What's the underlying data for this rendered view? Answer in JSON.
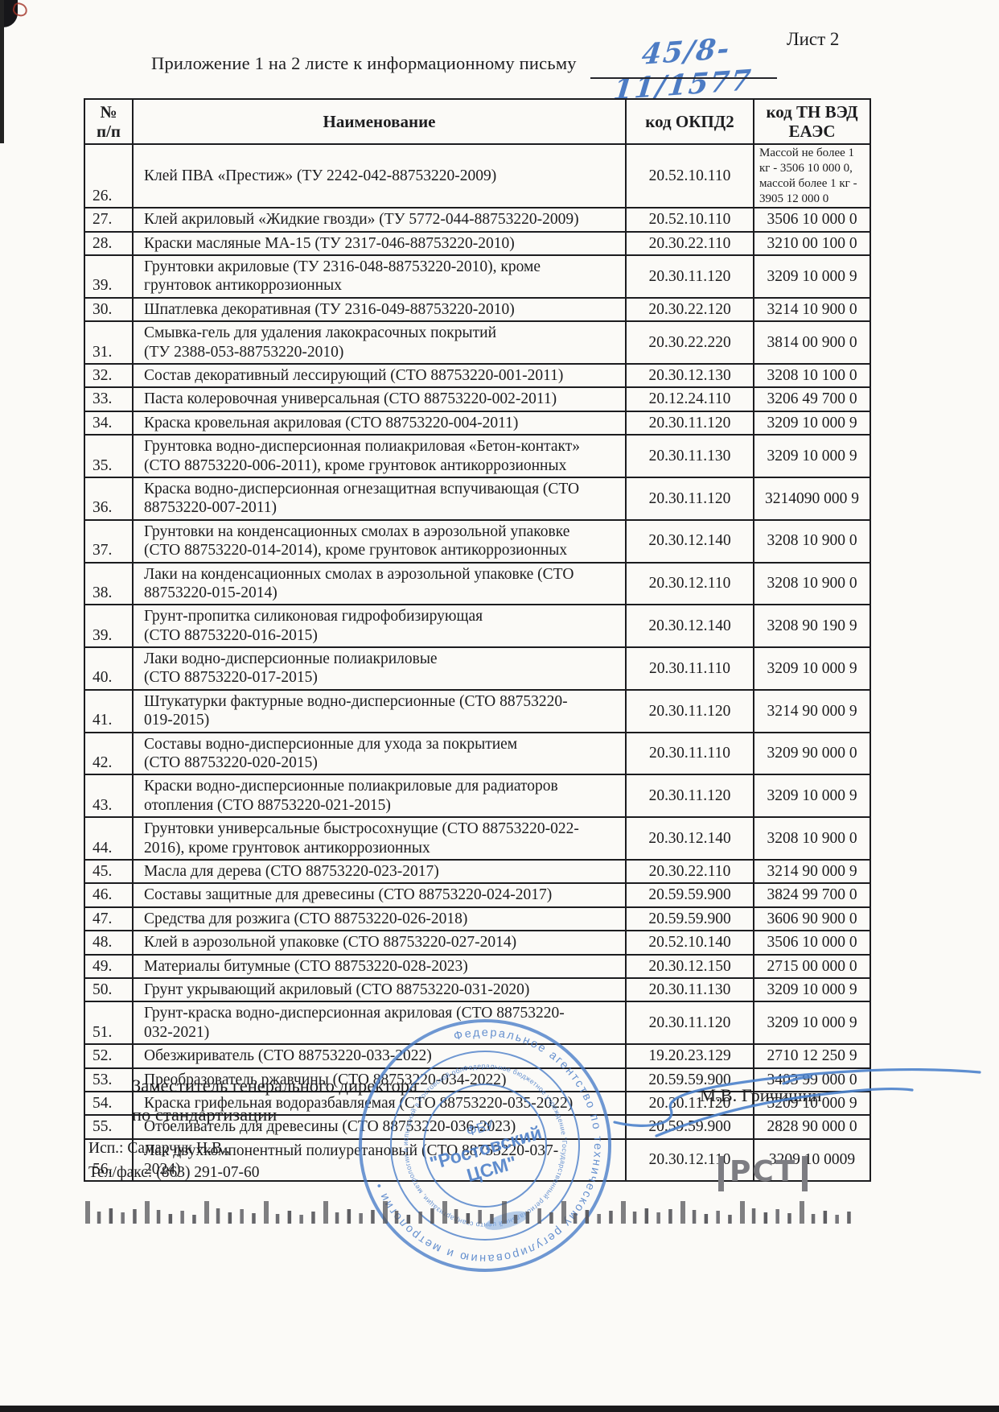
{
  "page": {
    "sheet_label": "Лист 2",
    "title_prefix": "Приложение 1 на 2 листе к информационному письму",
    "letter_number_handwritten": "45/8-11/1577"
  },
  "table": {
    "headers": {
      "num": "№\nп/п",
      "name": "Наименование",
      "okpd2": "код ОКПД2",
      "tnved": "код ТН ВЭД\nЕАЭС"
    },
    "rows": [
      {
        "num": "26.",
        "name": "Клей ПВА «Престиж» (ТУ 2242-042-88753220-2009)",
        "okpd2": "20.52.10.110",
        "tnved": "Массой не более 1\nкг - 3506 10 000 0,\nмассой более 1 кг -\n3905 12 000 0"
      },
      {
        "num": "27.",
        "name": "Клей акриловый «Жидкие гвозди» (ТУ 5772-044-88753220-2009)",
        "okpd2": "20.52.10.110",
        "tnved": "3506 10 000 0"
      },
      {
        "num": "28.",
        "name": "Краски масляные МА-15 (ТУ 2317-046-88753220-2010)",
        "okpd2": "20.30.22.110",
        "tnved": "3210 00 100 0"
      },
      {
        "num": "39.",
        "name": "Грунтовки акриловые (ТУ 2316-048-88753220-2010), кроме\nгрунтовок антикоррозионных",
        "okpd2": "20.30.11.120",
        "tnved": "3209 10 000 9"
      },
      {
        "num": "30.",
        "name": "Шпатлевка декоративная (ТУ 2316-049-88753220-2010)",
        "okpd2": "20.30.22.120",
        "tnved": "3214 10 900 0"
      },
      {
        "num": "31.",
        "name": "Смывка-гель для удаления лакокрасочных покрытий\n(ТУ 2388-053-88753220-2010)",
        "okpd2": "20.30.22.220",
        "tnved": "3814 00 900 0"
      },
      {
        "num": "32.",
        "name": "Состав декоративный лессирующий (СТО 88753220-001-2011)",
        "okpd2": "20.30.12.130",
        "tnved": "3208 10 100 0"
      },
      {
        "num": "33.",
        "name": "Паста колеровочная универсальная (СТО 88753220-002-2011)",
        "okpd2": "20.12.24.110",
        "tnved": "3206 49 700 0"
      },
      {
        "num": "34.",
        "name": "Краска кровельная акриловая (СТО 88753220-004-2011)",
        "okpd2": "20.30.11.120",
        "tnved": "3209 10 000 9"
      },
      {
        "num": "35.",
        "name": "Грунтовка водно-дисперсионная полиакриловая «Бетон-контакт»\n(СТО 88753220-006-2011), кроме грунтовок антикоррозионных",
        "okpd2": "20.30.11.130",
        "tnved": "3209 10 000 9"
      },
      {
        "num": "36.",
        "name": "Краска водно-дисперсионная огнезащитная вспучивающая (СТО\n88753220-007-2011)",
        "okpd2": "20.30.11.120",
        "tnved": "3214090 000 9"
      },
      {
        "num": "37.",
        "name": "Грунтовки на конденсационных смолах в аэрозольной упаковке\n(СТО 88753220-014-2014), кроме грунтовок антикоррозионных",
        "okpd2": "20.30.12.140",
        "tnved": "3208 10 900 0"
      },
      {
        "num": "38.",
        "name": "Лаки на конденсационных смолах в аэрозольной упаковке (СТО\n88753220-015-2014)",
        "okpd2": "20.30.12.110",
        "tnved": "3208 10 900 0"
      },
      {
        "num": "39.",
        "name": "Грунт-пропитка силиконовая гидрофобизирующая\n(СТО 88753220-016-2015)",
        "okpd2": "20.30.12.140",
        "tnved": "3208 90 190 9"
      },
      {
        "num": "40.",
        "name": "Лаки водно-дисперсионные полиакриловые\n(СТО 88753220-017-2015)",
        "okpd2": "20.30.11.110",
        "tnved": "3209 10 000 9"
      },
      {
        "num": "41.",
        "name": "Штукатурки фактурные водно-дисперсионные (СТО 88753220-\n019-2015)",
        "okpd2": "20.30.11.120",
        "tnved": "3214 90 000 9"
      },
      {
        "num": "42.",
        "name": "Составы водно-дисперсионные для ухода за покрытием\n(СТО 88753220-020-2015)",
        "okpd2": "20.30.11.110",
        "tnved": "3209 90 000 0"
      },
      {
        "num": "43.",
        "name": "Краски водно-дисперсионные полиакриловые для радиаторов\nотопления (СТО 88753220-021-2015)",
        "okpd2": "20.30.11.120",
        "tnved": "3209 10 000 9"
      },
      {
        "num": "44.",
        "name": "Грунтовки универсальные быстросохнущие (СТО 88753220-022-\n2016), кроме грунтовок антикоррозионных",
        "okpd2": "20.30.12.140",
        "tnved": "3208 10 900 0"
      },
      {
        "num": "45.",
        "name": "Масла для дерева (СТО 88753220-023-2017)",
        "okpd2": "20.30.22.110",
        "tnved": "3214 90 000 9"
      },
      {
        "num": "46.",
        "name": "Составы защитные для древесины (СТО 88753220-024-2017)",
        "okpd2": "20.59.59.900",
        "tnved": "3824 99 700 0"
      },
      {
        "num": "47.",
        "name": "Средства для розжига (СТО 88753220-026-2018)",
        "okpd2": "20.59.59.900",
        "tnved": "3606 90 900 0"
      },
      {
        "num": "48.",
        "name": "Клей в аэрозольной упаковке (СТО 88753220-027-2014)",
        "okpd2": "20.52.10.140",
        "tnved": "3506 10 000 0"
      },
      {
        "num": "49.",
        "name": "Материалы битумные (СТО 88753220-028-2023)",
        "okpd2": "20.30.12.150",
        "tnved": "2715 00 000 0"
      },
      {
        "num": "50.",
        "name": "Грунт укрывающий акриловый (СТО 88753220-031-2020)",
        "okpd2": "20.30.11.130",
        "tnved": "3209 10 000 9"
      },
      {
        "num": "51.",
        "name": "Грунт-краска водно-дисперсионная акриловая (СТО 88753220-\n032-2021)",
        "okpd2": "20.30.11.120",
        "tnved": "3209 10 000 9"
      },
      {
        "num": "52.",
        "name": "Обезжириватель (СТО 88753220-033-2022)",
        "okpd2": "19.20.23.129",
        "tnved": "2710 12 250 9"
      },
      {
        "num": "53.",
        "name": "Преобразователь ржавчины (СТО 88753220-034-2022)",
        "okpd2": "20.59.59.900",
        "tnved": "3403 99 000 0"
      },
      {
        "num": "54.",
        "name": "Краска грифельная водоразбавляемая (СТО 88753220-035-2022)",
        "okpd2": "20.30.11.120",
        "tnved": "3209 10 000 9"
      },
      {
        "num": "55.",
        "name": "Отбеливатель для древесины (СТО 88753220-036-2023)",
        "okpd2": "20.59.59.900",
        "tnved": "2828 90 000 0"
      },
      {
        "num": "56.",
        "name": "Лак двухкомпонентный полиуретановый (СТО 88753220-037-\n2024)",
        "okpd2": "20.30.12.110",
        "tnved": "3209 10 0009"
      }
    ]
  },
  "footer": {
    "signer_title_line1": "Заместитель генерального директора",
    "signer_title_line2": "по стандартизации",
    "signer_name": "М.В. Гричишин",
    "executor_line1": "Исп.: Самарчук Н.В.,",
    "executor_line2": "Тел/факс: (863) 291-07-60",
    "rst_mark": "РСТ"
  },
  "stamp": {
    "center_line1": "ФБУ",
    "center_line2": "\"Ростовский",
    "center_line3": "ЦСМ\"",
    "ring_text_outer": "Федеральное агентство по техническому регулированию и метрологии •",
    "ring_text_inner": "Федеральное бюджетное учреждение \"Государственный региональный центр стандартизации, метрологии и испытаний в Ростовской области\" ОГРН 1036163003333 ИНН 6163000640"
  },
  "colors": {
    "ink_blue": "#3f72c0",
    "stamp_blue": "#4a7dc8",
    "paper": "#fbfaf7",
    "text": "#1d1d1f"
  }
}
